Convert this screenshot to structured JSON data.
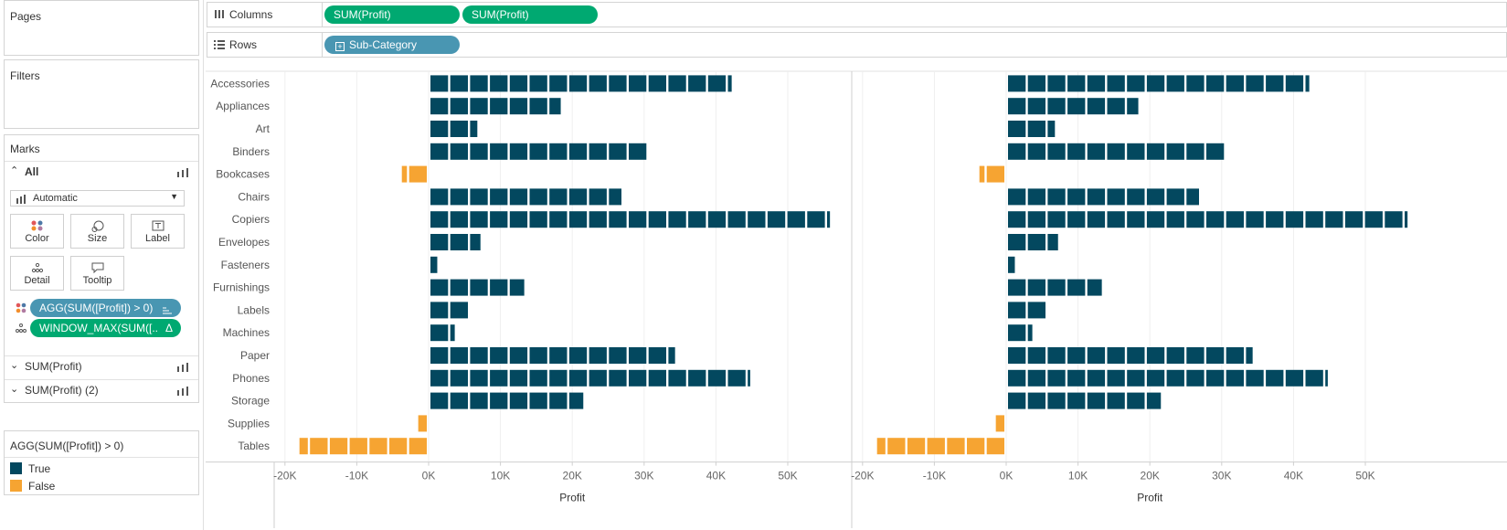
{
  "left_panel": {
    "pages_title": "Pages",
    "filters_title": "Filters",
    "marks_title": "Marks",
    "all_label": "All",
    "mark_type": "Automatic",
    "buttons": [
      {
        "label": "Color",
        "icon": "color-dots-icon"
      },
      {
        "label": "Size",
        "icon": "size-icon"
      },
      {
        "label": "Label",
        "icon": "label-icon"
      },
      {
        "label": "Detail",
        "icon": "detail-icon"
      },
      {
        "label": "Tooltip",
        "icon": "tooltip-icon"
      }
    ],
    "mark_pills": [
      {
        "text": "AGG(SUM([Profit]) > 0)",
        "icon": "color-dots-icon",
        "suffix": "sort-icon"
      },
      {
        "text": "WINDOW_MAX(SUM([..",
        "icon": "detail-icon",
        "suffix": "Δ"
      }
    ],
    "measure_cards": [
      "SUM(Profit)",
      "SUM(Profit) (2)"
    ],
    "legend": {
      "title": "AGG(SUM([Profit]) > 0)",
      "items": [
        {
          "label": "True",
          "color": "#03485f"
        },
        {
          "label": "False",
          "color": "#f6a432"
        }
      ]
    }
  },
  "shelves": {
    "columns_label": "Columns",
    "columns_pills": [
      "SUM(Profit)",
      "SUM(Profit)"
    ],
    "rows_label": "Rows",
    "rows_pills": [
      "Sub-Category"
    ]
  },
  "chart_data": {
    "type": "bar",
    "categories": [
      "Accessories",
      "Appliances",
      "Art",
      "Binders",
      "Bookcases",
      "Chairs",
      "Copiers",
      "Envelopes",
      "Fasteners",
      "Furnishings",
      "Labels",
      "Machines",
      "Paper",
      "Phones",
      "Storage",
      "Supplies",
      "Tables"
    ],
    "values": [
      41937,
      18138,
      6528,
      30222,
      -3473,
      26590,
      55618,
      6964,
      950,
      13059,
      5546,
      3385,
      34054,
      44516,
      21279,
      -1189,
      -17725
    ],
    "xlabel": "Profit",
    "x_ticks": [
      "-20K",
      "-10K",
      "0K",
      "10K",
      "20K",
      "30K",
      "40K",
      "50K"
    ],
    "xlim": [
      -22000,
      58000
    ],
    "panels": 2,
    "colors": {
      "true": "#03485f",
      "false": "#f6a432"
    }
  }
}
